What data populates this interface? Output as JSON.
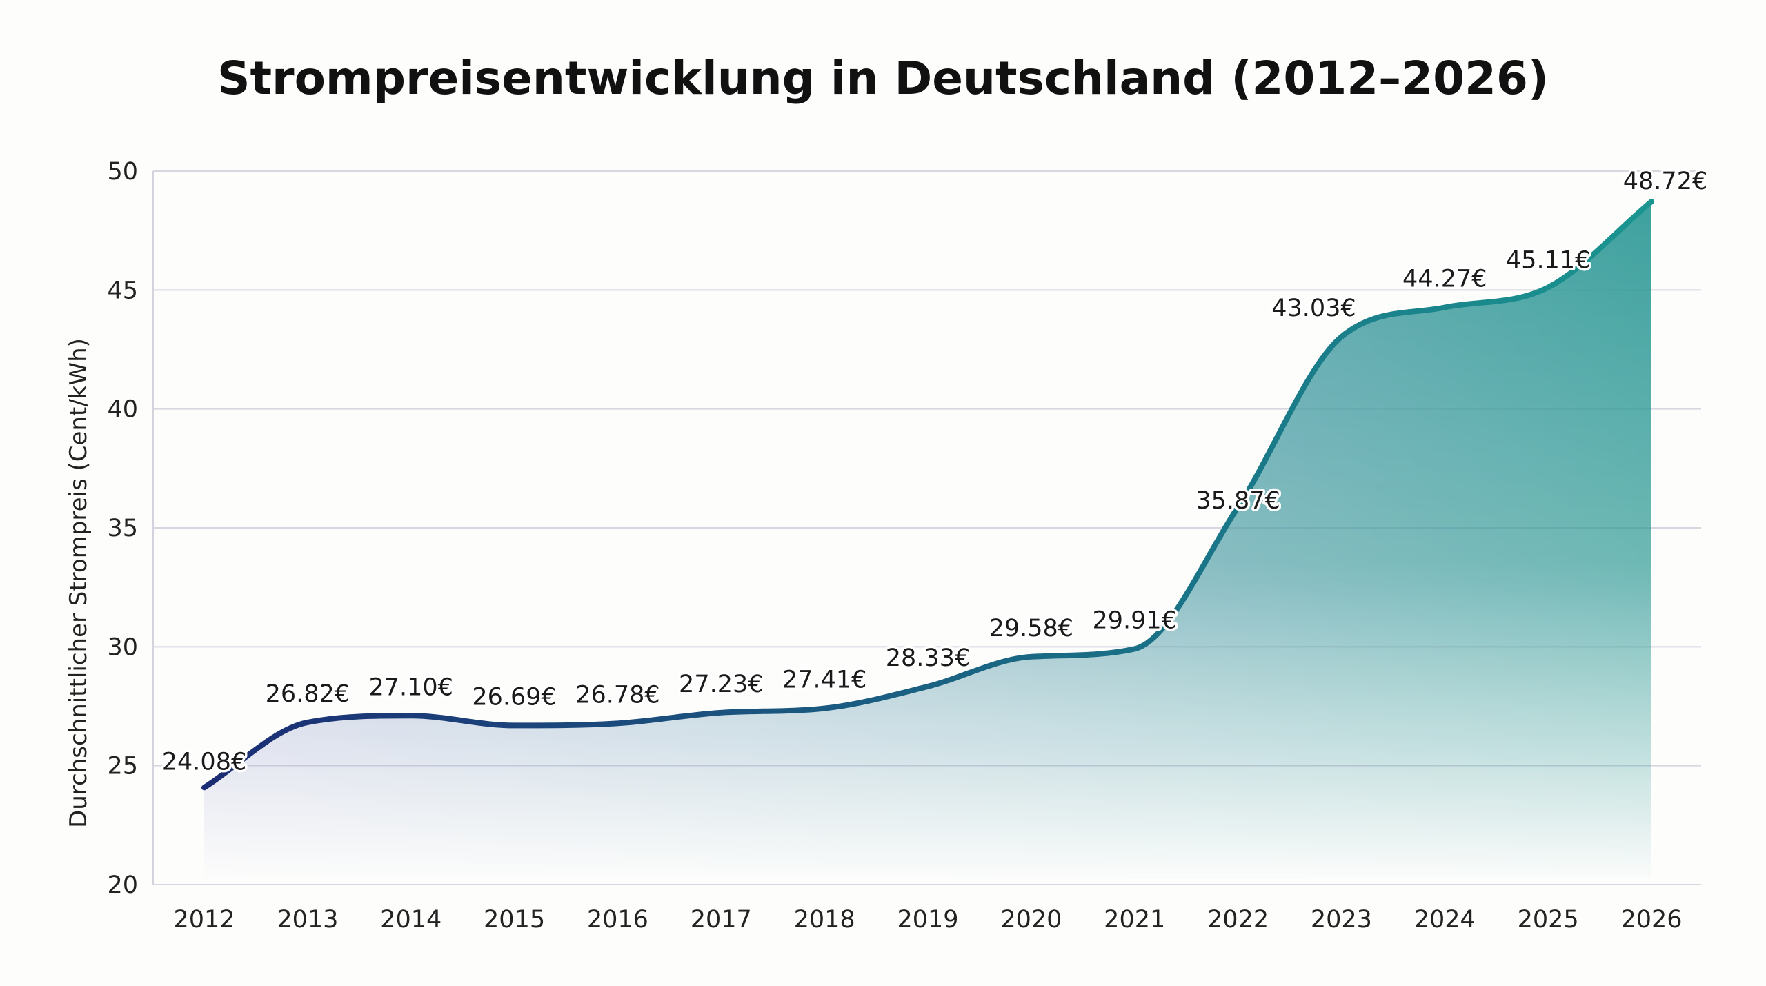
{
  "chart_data": {
    "type": "area",
    "title": "Strompreisentwicklung in Deutschland (2012–2026)",
    "xlabel": "",
    "ylabel": "Durchschnittlicher Strompreis (Cent/kWh)",
    "ylim": [
      20,
      50
    ],
    "yticks": [
      "20",
      "25",
      "30",
      "35",
      "40",
      "45",
      "50"
    ],
    "grid": true,
    "categories": [
      "2012",
      "2013",
      "2014",
      "2015",
      "2016",
      "2017",
      "2018",
      "2019",
      "2020",
      "2021",
      "2022",
      "2023",
      "2024",
      "2025",
      "2026"
    ],
    "values": [
      24.08,
      26.82,
      27.1,
      26.69,
      26.78,
      27.23,
      27.41,
      28.33,
      29.58,
      29.91,
      35.87,
      43.03,
      44.27,
      45.11,
      48.72
    ],
    "data_labels": [
      "24.08€",
      "26.82€",
      "27.10€",
      "26.69€",
      "26.78€",
      "27.23€",
      "27.41€",
      "28.33€",
      "29.58€",
      "29.91€",
      "35.87€",
      "43.03€",
      "44.27€",
      "45.11€",
      "48.72€"
    ],
    "colors": {
      "line_start": "#1b2d74",
      "line_end": "#1a9590",
      "fill_start": "#aab0d6",
      "fill_end": "#2f9a96",
      "grid": "#d9d6e0"
    }
  }
}
